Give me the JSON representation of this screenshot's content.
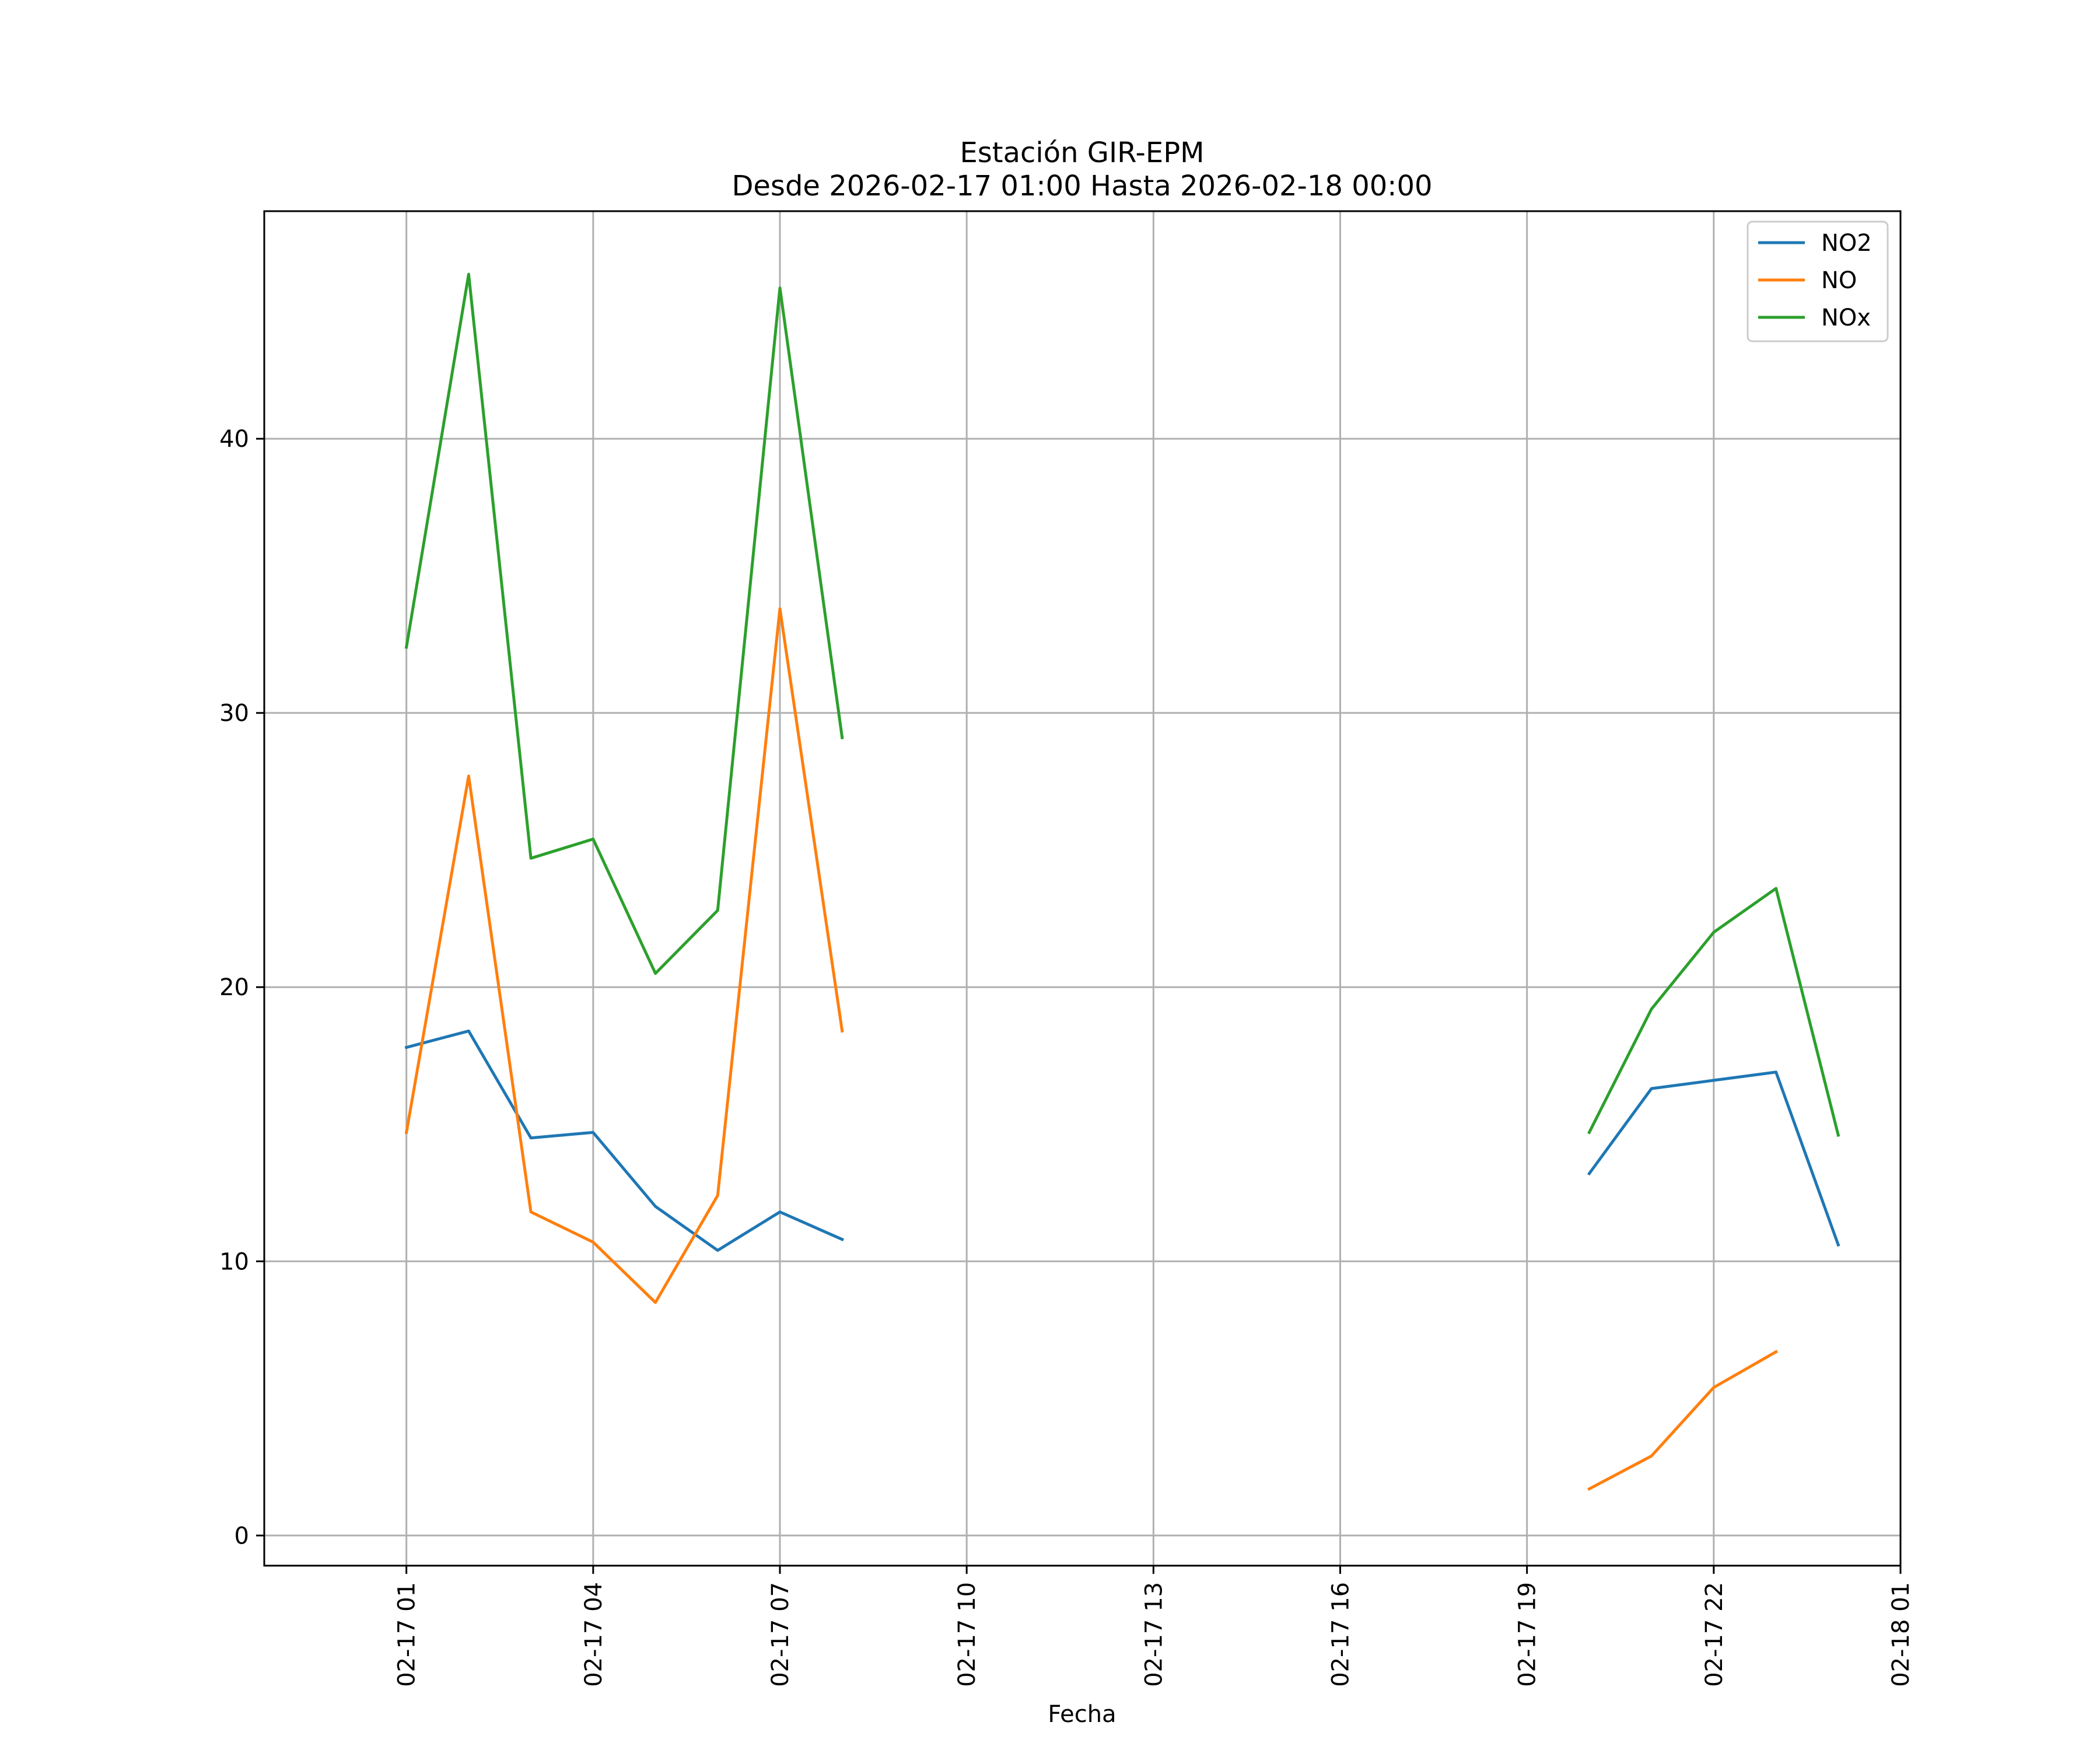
{
  "chart_data": {
    "type": "line",
    "title": "Estación GIR-EPM",
    "subtitle": "Desde 2026-02-17 01:00 Hasta 2026-02-18 00:00",
    "xlabel": "Fecha",
    "ylabel": "",
    "xlim": [
      "2026-02-16 22:43",
      "2026-02-18 01:00"
    ],
    "ylim": [
      -1.1,
      48.3
    ],
    "xticks": [
      "02-17 01",
      "02-17 04",
      "02-17 07",
      "02-17 10",
      "02-17 13",
      "02-17 16",
      "02-17 19",
      "02-17 22",
      "02-18 01"
    ],
    "xtick_times": [
      "2026-02-17 01:00",
      "2026-02-17 04:00",
      "2026-02-17 07:00",
      "2026-02-17 10:00",
      "2026-02-17 13:00",
      "2026-02-17 16:00",
      "2026-02-17 19:00",
      "2026-02-17 22:00",
      "2026-02-18 01:00"
    ],
    "yticks": [
      0,
      10,
      20,
      30,
      40
    ],
    "grid": true,
    "legend_position": "top-right",
    "x": [
      "2026-02-17 01:00",
      "2026-02-17 02:00",
      "2026-02-17 03:00",
      "2026-02-17 04:00",
      "2026-02-17 05:00",
      "2026-02-17 06:00",
      "2026-02-17 07:00",
      "2026-02-17 08:00",
      "2026-02-17 09:00",
      "2026-02-17 10:00",
      "2026-02-17 11:00",
      "2026-02-17 12:00",
      "2026-02-17 13:00",
      "2026-02-17 14:00",
      "2026-02-17 15:00",
      "2026-02-17 16:00",
      "2026-02-17 17:00",
      "2026-02-17 18:00",
      "2026-02-17 19:00",
      "2026-02-17 20:00",
      "2026-02-17 21:00",
      "2026-02-17 22:00",
      "2026-02-17 23:00",
      "2026-02-18 00:00"
    ],
    "series": [
      {
        "name": "NO2",
        "color": "#1f77b4",
        "values": [
          17.8,
          18.4,
          14.5,
          14.7,
          12.0,
          10.4,
          11.8,
          10.8,
          null,
          null,
          null,
          null,
          null,
          null,
          null,
          null,
          null,
          null,
          null,
          13.2,
          16.3,
          16.6,
          16.9,
          10.6
        ]
      },
      {
        "name": "NO",
        "color": "#ff7f0e",
        "values": [
          14.7,
          27.7,
          11.8,
          10.7,
          8.5,
          12.4,
          33.8,
          18.4,
          null,
          null,
          null,
          null,
          null,
          null,
          null,
          null,
          null,
          null,
          null,
          1.7,
          2.9,
          5.4,
          6.7,
          null
        ]
      },
      {
        "name": "NOx",
        "color": "#2ca02c",
        "values": [
          32.4,
          46.0,
          24.7,
          25.4,
          20.5,
          22.8,
          45.5,
          29.1,
          null,
          null,
          null,
          null,
          null,
          null,
          null,
          null,
          null,
          null,
          null,
          14.7,
          19.2,
          22.0,
          23.6,
          14.6
        ]
      }
    ]
  }
}
